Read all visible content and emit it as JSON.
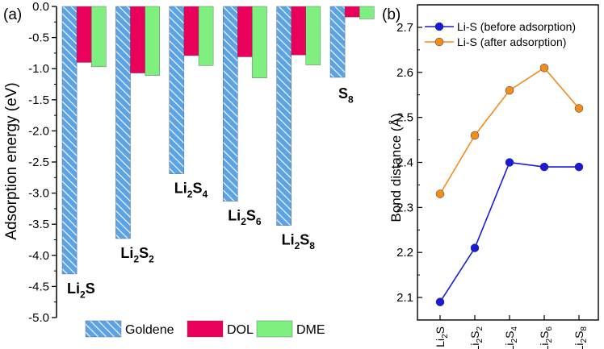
{
  "panel_labels": {
    "a": "(a)",
    "b": "(b)"
  },
  "colors": {
    "goldene": "#5ba3e6",
    "goldene_hatch": "#ffffff",
    "dol": "#e8005a",
    "dme": "#7ff07f",
    "before": "#1a1adb",
    "after": "#f28c1c",
    "axis": "#000000"
  },
  "chart_data": [
    {
      "type": "bar",
      "panel": "(a)",
      "title": "",
      "xlabel": "",
      "ylabel": "Adsorption energy (eV)",
      "ylim": [
        -5.0,
        0.0
      ],
      "yticks": [
        "0.0",
        "-0.5",
        "-1.0",
        "-1.5",
        "-2.0",
        "-2.5",
        "-3.0",
        "-3.5",
        "-4.0",
        "-4.5",
        "-5.0"
      ],
      "categories": [
        {
          "base": "Li",
          "sub1": "2",
          "mid": "S",
          "sub2": ""
        },
        {
          "base": "Li",
          "sub1": "2",
          "mid": "S",
          "sub2": "2"
        },
        {
          "base": "Li",
          "sub1": "2",
          "mid": "S",
          "sub2": "4"
        },
        {
          "base": "Li",
          "sub1": "2",
          "mid": "S",
          "sub2": "6"
        },
        {
          "base": "Li",
          "sub1": "2",
          "mid": "S",
          "sub2": "8"
        },
        {
          "base": "",
          "sub1": "",
          "mid": "S",
          "sub2": "8"
        }
      ],
      "series": [
        {
          "name": "Goldene",
          "values": [
            -4.3,
            -3.73,
            -2.69,
            -3.13,
            -3.52,
            -1.14
          ]
        },
        {
          "name": "DOL",
          "values": [
            -0.9,
            -1.07,
            -0.79,
            -0.81,
            -0.78,
            -0.17
          ]
        },
        {
          "name": "DME",
          "values": [
            -0.97,
            -1.11,
            -0.95,
            -1.15,
            -0.94,
            -0.2
          ]
        }
      ],
      "legend": {
        "position": "bottom",
        "labels": [
          "Goldene",
          "DOL",
          "DME"
        ]
      }
    },
    {
      "type": "line",
      "panel": "(b)",
      "title": "",
      "xlabel": "",
      "ylabel": "Bond distance (Å)",
      "ylim": [
        2.05,
        2.75
      ],
      "yticks": [
        "2.1",
        "2.2",
        "2.3",
        "2.4",
        "2.5",
        "2.6",
        "2.7"
      ],
      "categories": [
        {
          "base": "Li",
          "sub1": "2",
          "mid": "S",
          "sub2": ""
        },
        {
          "base": "Li",
          "sub1": "2",
          "mid": "S",
          "sub2": "2"
        },
        {
          "base": "Li",
          "sub1": "2",
          "mid": "S",
          "sub2": "4"
        },
        {
          "base": "Li",
          "sub1": "2",
          "mid": "S",
          "sub2": "6"
        },
        {
          "base": "Li",
          "sub1": "2",
          "mid": "S",
          "sub2": "8"
        }
      ],
      "series": [
        {
          "name": "Li-S (before adsorption)",
          "values": [
            2.09,
            2.21,
            2.4,
            2.39,
            2.39
          ]
        },
        {
          "name": "Li-S (after adsorption)",
          "values": [
            2.33,
            2.46,
            2.56,
            2.61,
            2.52
          ]
        }
      ],
      "legend": {
        "position": "top-left",
        "labels": [
          "Li-S (before adsorption)",
          "Li-S (after adsorption)"
        ]
      }
    }
  ]
}
